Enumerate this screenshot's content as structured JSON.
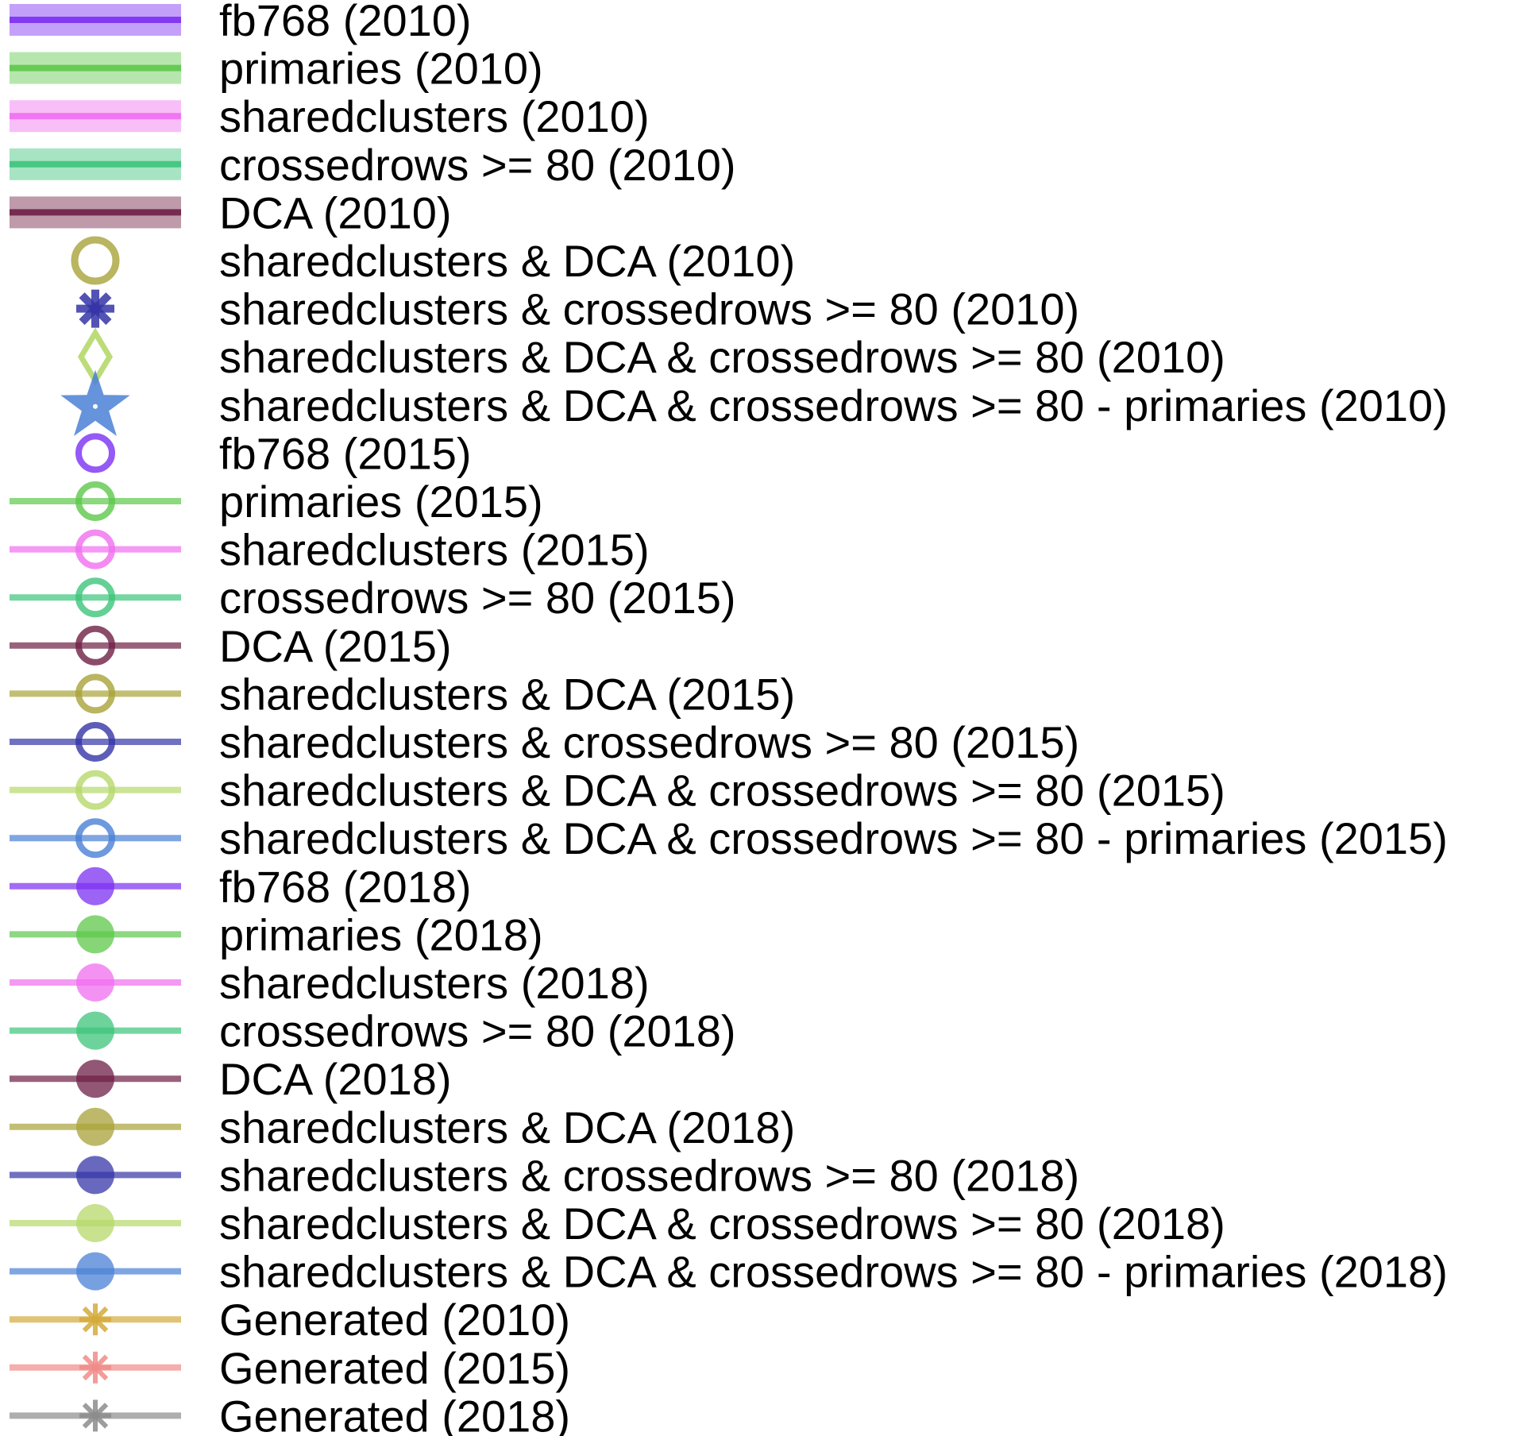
{
  "chart_data": {
    "type": "legend",
    "entries": [
      {
        "label": "fb768 (2010)",
        "color": "#7B2FF2",
        "style": "band",
        "marker": "none"
      },
      {
        "label": "primaries (2010)",
        "color": "#5DC84A",
        "style": "band",
        "marker": "none"
      },
      {
        "label": "sharedclusters (2010)",
        "color": "#F06EF0",
        "style": "band",
        "marker": "none"
      },
      {
        "label": "crossedrows >= 80 (2010)",
        "color": "#3CC47A",
        "style": "band",
        "marker": "none"
      },
      {
        "label": "DCA (2010)",
        "color": "#6E1F45",
        "style": "band",
        "marker": "none"
      },
      {
        "label": "sharedclusters & DCA (2010)",
        "color": "#A8A238",
        "style": "none",
        "marker": "open-circle"
      },
      {
        "label": "sharedclusters & crossedrows >= 80 (2010)",
        "color": "#3535A8",
        "style": "none",
        "marker": "asterisk"
      },
      {
        "label": "sharedclusters & DCA & crossedrows >= 80 (2010)",
        "color": "#B5D86A",
        "style": "none",
        "marker": "open-diamond"
      },
      {
        "label": "sharedclusters & DCA & crossedrows >= 80 - primaries (2010)",
        "color": "#4A80D6",
        "style": "none",
        "marker": "star"
      },
      {
        "label": "fb768 (2015)",
        "color": "#7B2FF2",
        "style": "none",
        "marker": "open-circle"
      },
      {
        "label": "primaries (2015)",
        "color": "#5DC84A",
        "style": "line",
        "marker": "open-circle"
      },
      {
        "label": "sharedclusters (2015)",
        "color": "#F06EF0",
        "style": "line",
        "marker": "open-circle"
      },
      {
        "label": "crossedrows >= 80 (2015)",
        "color": "#3CC47A",
        "style": "line",
        "marker": "open-circle"
      },
      {
        "label": "DCA (2015)",
        "color": "#6E1F45",
        "style": "line",
        "marker": "open-circle"
      },
      {
        "label": "sharedclusters & DCA (2015)",
        "color": "#A8A238",
        "style": "line",
        "marker": "open-circle"
      },
      {
        "label": "sharedclusters & crossedrows >= 80 (2015)",
        "color": "#3535A8",
        "style": "line",
        "marker": "open-circle"
      },
      {
        "label": "sharedclusters & DCA & crossedrows >= 80 (2015)",
        "color": "#B5D86A",
        "style": "line",
        "marker": "open-circle"
      },
      {
        "label": "sharedclusters & DCA & crossedrows >= 80 - primaries (2015)",
        "color": "#4A80D6",
        "style": "line",
        "marker": "open-circle"
      },
      {
        "label": "fb768 (2018)",
        "color": "#7B2FF2",
        "style": "line",
        "marker": "filled-circle"
      },
      {
        "label": "primaries (2018)",
        "color": "#5DC84A",
        "style": "line",
        "marker": "filled-circle"
      },
      {
        "label": "sharedclusters (2018)",
        "color": "#F06EF0",
        "style": "line",
        "marker": "filled-circle"
      },
      {
        "label": "crossedrows >= 80 (2018)",
        "color": "#3CC47A",
        "style": "line",
        "marker": "filled-circle"
      },
      {
        "label": "DCA (2018)",
        "color": "#6E1F45",
        "style": "line",
        "marker": "filled-circle"
      },
      {
        "label": "sharedclusters & DCA (2018)",
        "color": "#A8A238",
        "style": "line",
        "marker": "filled-circle"
      },
      {
        "label": "sharedclusters & crossedrows >= 80 (2018)",
        "color": "#3535A8",
        "style": "line",
        "marker": "filled-circle"
      },
      {
        "label": "sharedclusters & DCA & crossedrows >= 80 (2018)",
        "color": "#B5D86A",
        "style": "line",
        "marker": "filled-circle"
      },
      {
        "label": "sharedclusters & DCA & crossedrows >= 80 - primaries (2018)",
        "color": "#4A80D6",
        "style": "line",
        "marker": "filled-circle"
      },
      {
        "label": "Generated (2010)",
        "color": "#D4AA3A",
        "style": "line",
        "marker": "asterisk"
      },
      {
        "label": "Generated (2015)",
        "color": "#F08C88",
        "style": "line",
        "marker": "asterisk"
      },
      {
        "label": "Generated (2018)",
        "color": "#8C8C8C",
        "style": "line",
        "marker": "asterisk"
      }
    ]
  }
}
